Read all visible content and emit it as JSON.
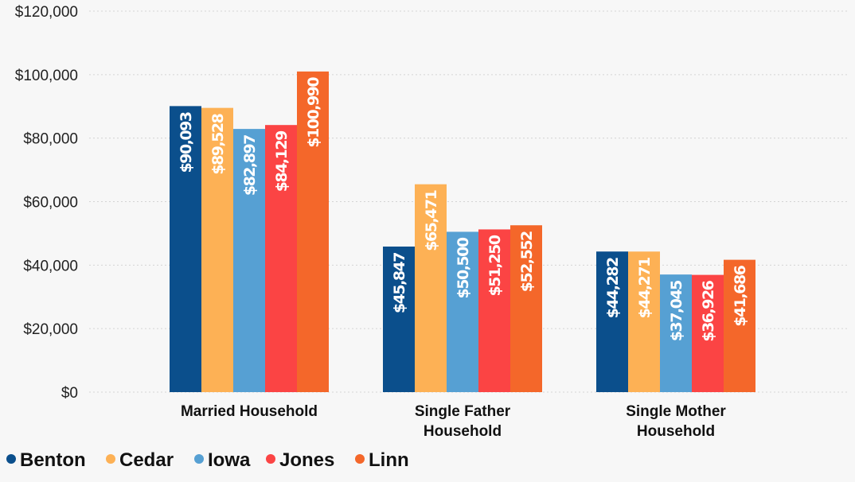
{
  "chart_data": {
    "type": "bar",
    "title": "",
    "xlabel": "",
    "ylabel": "",
    "ylim": [
      0,
      120000
    ],
    "yticks": [
      0,
      20000,
      40000,
      60000,
      80000,
      100000,
      120000
    ],
    "ytick_labels": [
      "$0",
      "$20,000",
      "$40,000",
      "$60,000",
      "$80,000",
      "$100,000",
      "$120,000"
    ],
    "grid": true,
    "legend_position": "bottom-left",
    "categories": [
      [
        "Married Household"
      ],
      [
        "Single Father",
        "Household"
      ],
      [
        "Single Mother",
        "Household"
      ]
    ],
    "series": [
      {
        "name": "Benton",
        "color": "#0b4f8c",
        "values": [
          90093,
          45847,
          44282
        ],
        "labels": [
          "$90,093",
          "$45,847",
          "$44,282"
        ]
      },
      {
        "name": "Cedar",
        "color": "#fdb155",
        "values": [
          89528,
          65471,
          44271
        ],
        "labels": [
          "$89,528",
          "$65,471",
          "$44,271"
        ]
      },
      {
        "name": "Iowa",
        "color": "#56a0d3",
        "values": [
          82897,
          50500,
          37045
        ],
        "labels": [
          "$82,897",
          "$50,500",
          "$37,045"
        ]
      },
      {
        "name": "Jones",
        "color": "#fb4444",
        "values": [
          84129,
          51250,
          36926
        ],
        "labels": [
          "$84,129",
          "$51,250",
          "$36,926"
        ]
      },
      {
        "name": "Linn",
        "color": "#f4672a",
        "values": [
          100990,
          52552,
          41686
        ],
        "labels": [
          "$100,990",
          "$52,552",
          "$41,686"
        ]
      }
    ]
  }
}
